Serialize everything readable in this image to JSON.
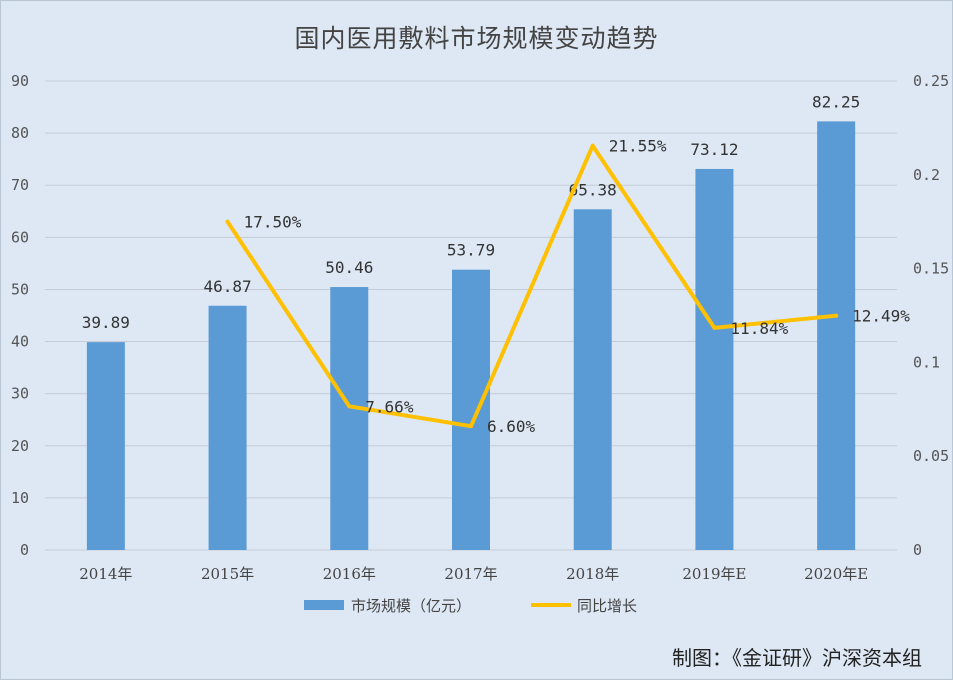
{
  "chart_data": {
    "type": "bar",
    "title": "国内医用敷料市场规模变动趋势",
    "categories": [
      "2014年",
      "2015年",
      "2016年",
      "2017年",
      "2018年",
      "2019年E",
      "2020年E"
    ],
    "series": [
      {
        "name": "市场规模（亿元）",
        "type": "bar",
        "axis": "left",
        "values": [
          39.89,
          46.87,
          50.46,
          53.79,
          65.38,
          73.12,
          82.25
        ],
        "labels": [
          "39.89",
          "46.87",
          "50.46",
          "53.79",
          "65.38",
          "73.12",
          "82.25"
        ],
        "color": "#5b9bd5"
      },
      {
        "name": "同比增长",
        "type": "line",
        "axis": "right",
        "values": [
          null,
          0.175,
          0.0766,
          0.066,
          0.2155,
          0.1184,
          0.1249
        ],
        "labels": [
          null,
          "17.50%",
          "7.66%",
          "6.60%",
          "21.55%",
          "11.84%",
          "12.49%"
        ],
        "color": "#ffc000"
      }
    ],
    "y_left": {
      "range": [
        0,
        90
      ],
      "ticks": [
        "0",
        "10",
        "20",
        "30",
        "40",
        "50",
        "60",
        "70",
        "80",
        "90"
      ]
    },
    "y_right": {
      "range": [
        0,
        0.25
      ],
      "ticks": [
        "0",
        "0.05",
        "0.1",
        "0.15",
        "0.2",
        "0.25"
      ]
    },
    "grid": true,
    "legend_position": "bottom"
  },
  "credit": "制图：《金证研》沪深资本组"
}
